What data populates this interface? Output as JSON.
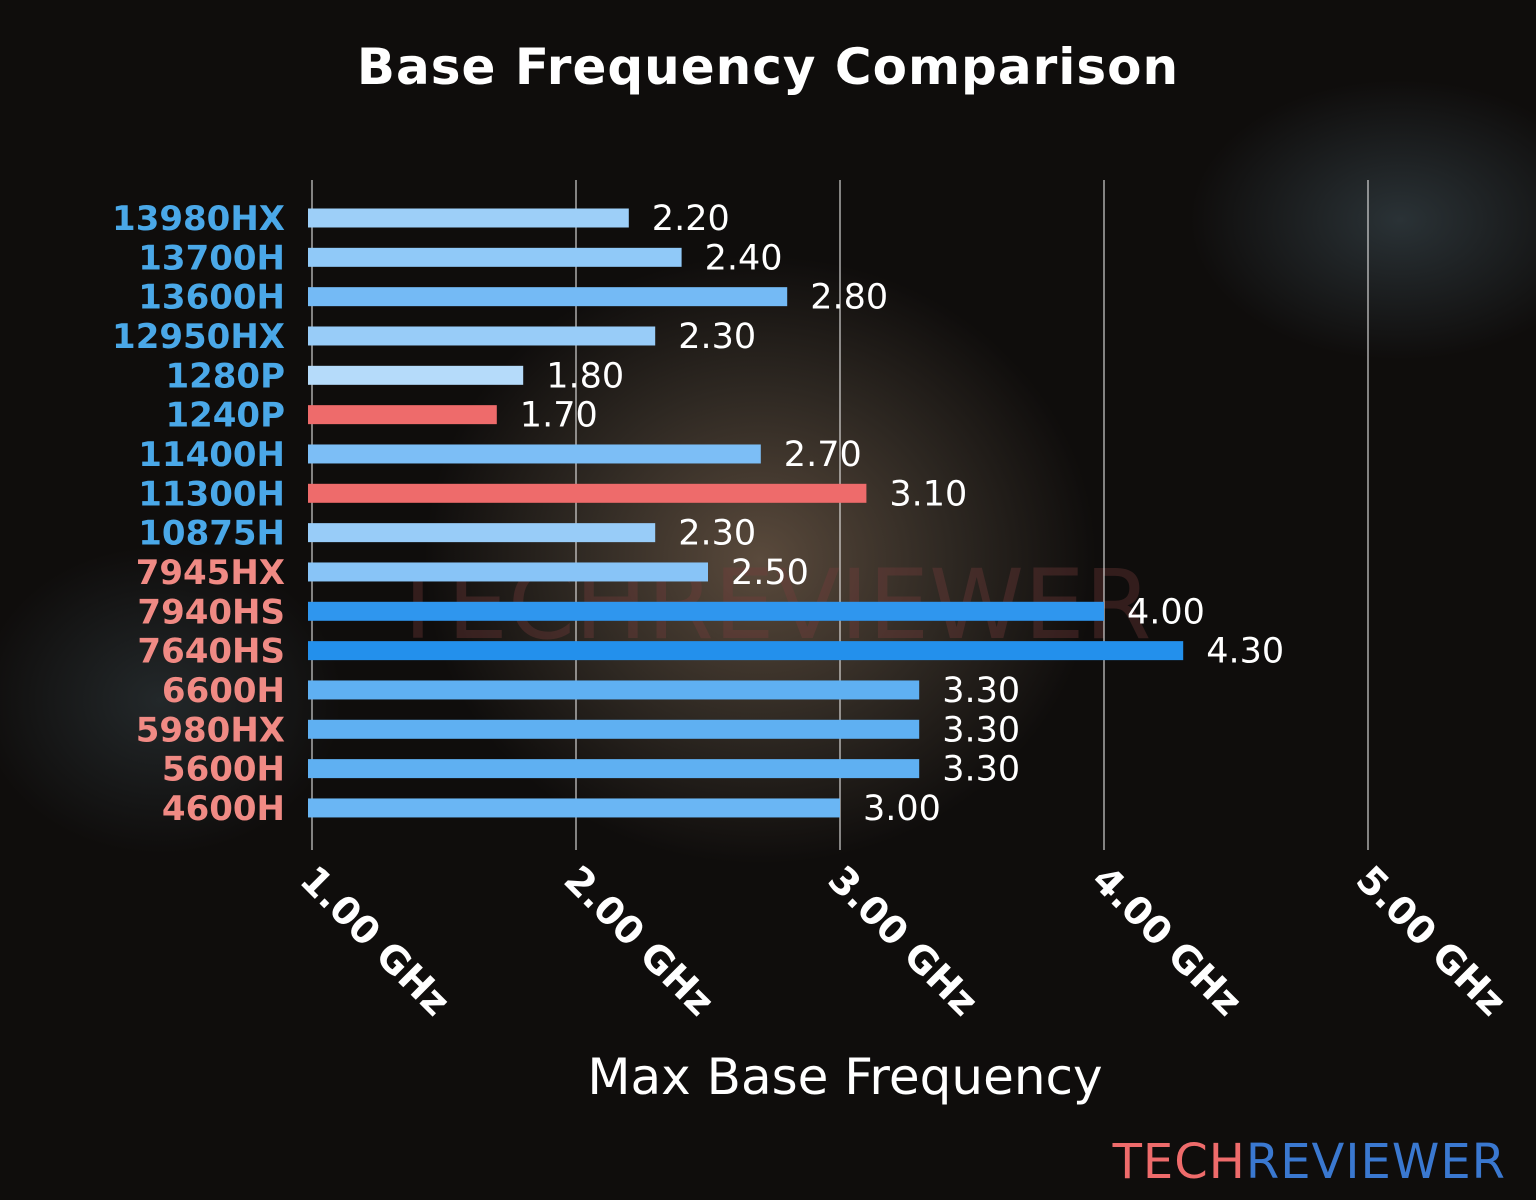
{
  "chart_data": {
    "type": "bar",
    "orientation": "horizontal",
    "title": "Base Frequency Comparison",
    "xlabel": "Max Base Frequency",
    "ylabel": "",
    "xlim": [
      1.0,
      5.0
    ],
    "xticks": [
      "1.00 GHz",
      "2.00 GHz",
      "3.00 GHz",
      "4.00 GHz",
      "5.00 GHz"
    ],
    "grid": "vertical",
    "categories": [
      "13980HX",
      "13700H",
      "13600H",
      "12950HX",
      "1280P",
      "1240P",
      "11400H",
      "11300H",
      "10875H",
      "7945HX",
      "7940HS",
      "7640HS",
      "6600H",
      "5980HX",
      "5600H",
      "4600H"
    ],
    "values": [
      2.2,
      2.4,
      2.8,
      2.3,
      1.8,
      1.7,
      2.7,
      3.1,
      2.3,
      2.5,
      4.0,
      4.3,
      3.3,
      3.3,
      3.3,
      3.0
    ],
    "data_labels": [
      "2.20",
      "2.40",
      "2.80",
      "2.30",
      "1.80",
      "1.70",
      "2.70",
      "3.10",
      "2.30",
      "2.50",
      "4.00",
      "4.30",
      "3.30",
      "3.30",
      "3.30",
      "3.00"
    ],
    "category_colors": [
      "#4aa8e8",
      "#4aa8e8",
      "#4aa8e8",
      "#4aa8e8",
      "#4aa8e8",
      "#4aa8e8",
      "#4aa8e8",
      "#4aa8e8",
      "#4aa8e8",
      "#f08a84",
      "#f08a84",
      "#f08a84",
      "#f08a84",
      "#f08a84",
      "#f08a84",
      "#f08a84"
    ],
    "bar_colors": [
      "#9dcff8",
      "#90c9f8",
      "#74baf5",
      "#98ccf8",
      "#b5dbfa",
      "#ee6b6b",
      "#7cbef6",
      "#ee6b6b",
      "#98ccf8",
      "#88c4f7",
      "#2f96ee",
      "#2390ec",
      "#5fb0f2",
      "#5fb0f2",
      "#5fb0f2",
      "#6ab6f4"
    ]
  },
  "watermark": "TECHREVIEWER",
  "logo": {
    "part1": "TECH",
    "part2": "REVIEWER",
    "color1": "#ee6b6b",
    "color2": "#3a78d0"
  }
}
